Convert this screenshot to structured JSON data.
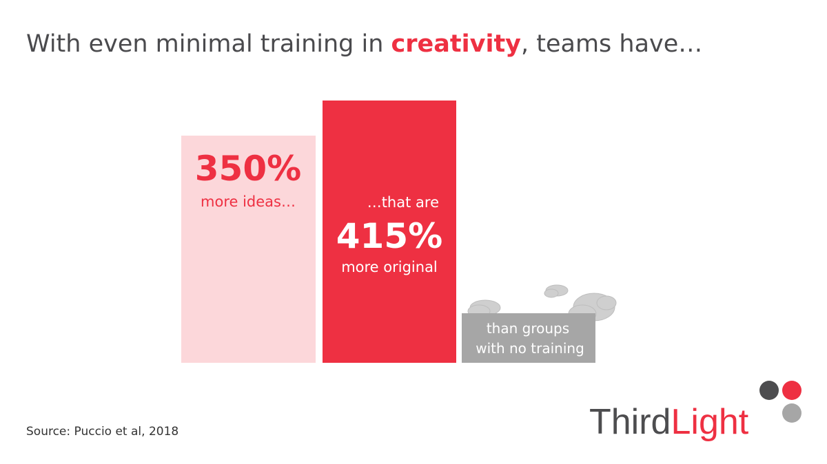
{
  "title": {
    "before": "With even minimal training in ",
    "highlight": "creativity",
    "after": ", teams have…"
  },
  "cards": [
    {
      "value": "350%",
      "caption": "more ideas…"
    },
    {
      "lead": "…that are",
      "value": "415%",
      "caption": "more original"
    },
    {
      "line1": "than groups",
      "line2": "with no training"
    }
  ],
  "source": "Source: Puccio et al, 2018",
  "logo": {
    "first": "Third",
    "second": "Light"
  }
}
